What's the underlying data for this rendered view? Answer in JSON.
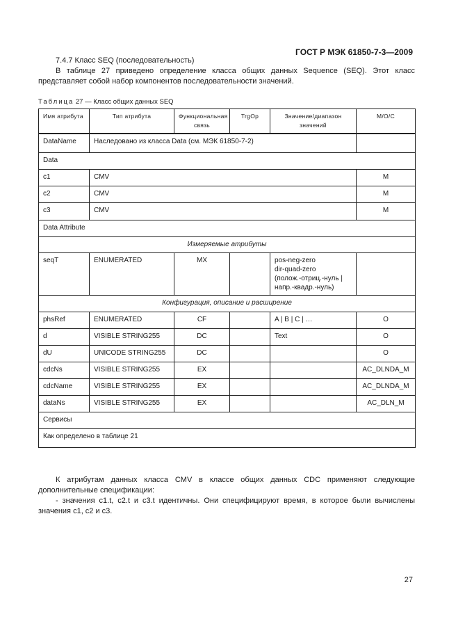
{
  "header": "ГОСТ Р МЭК 61850-7-3—2009",
  "section_title": "7.4.7 Класс SEQ (последовательность)",
  "intro": "В таблице 27 приведено определение класса общих данных Sequence (SEQ). Этот класс представляет собой набор компонентов последовательности значений.",
  "caption_prefix": "Таблица",
  "caption_rest": " 27 — Класс общих данных SEQ",
  "columns": [
    "Имя атрибута",
    "Тип атрибута",
    "Функциональная связь",
    "TrgOp",
    "Значение/диапазон значений",
    "M/O/C"
  ],
  "inherit_row": {
    "name": "DataName",
    "text": "Наследовано из класса Data (см. МЭК 61850-7-2)"
  },
  "section_data": "Data",
  "data_rows": [
    [
      "c1",
      "CMV",
      "M"
    ],
    [
      "c2",
      "CMV",
      "M"
    ],
    [
      "c3",
      "CMV",
      "M"
    ]
  ],
  "section_attr": "Data Attribute",
  "group_measured": "Измеряемые атрибуты",
  "seqT": {
    "name": "seqT",
    "type": "ENUMERATED",
    "fc": "MX",
    "trg": "",
    "values": [
      "pos-neg-zero",
      "dir-quad-zero",
      "(полож.-отриц.-нуль |",
      "напр.-квадр.-нуль)"
    ],
    "moc": ""
  },
  "group_config": "Конфигурация, описание и расширение",
  "config_rows": [
    [
      "phsRef",
      "ENUMERATED",
      "CF",
      "",
      "A | B | C | …",
      "O"
    ],
    [
      "d",
      "VISIBLE STRING255",
      "DC",
      "",
      "Text",
      "O"
    ],
    [
      "dU",
      "UNICODE STRING255",
      "DC",
      "",
      "",
      "O"
    ],
    [
      "cdcNs",
      "VISIBLE STRING255",
      "EX",
      "",
      "",
      "AC_DLNDA_M"
    ],
    [
      "cdcName",
      "VISIBLE STRING255",
      "EX",
      "",
      "",
      "AC_DLNDA_M"
    ],
    [
      "dataNs",
      "VISIBLE STRING255",
      "EX",
      "",
      "",
      "AC_DLN_M"
    ]
  ],
  "section_services": "Сервисы",
  "services_text": "Как определено в таблице 21",
  "after_para": "К атрибутам данных класса CMV в классе общих данных CDC применяют следующие дополнительные спецификации:",
  "after_item": "- значения c1.t, c2.t и c3.t идентичны. Они специфицируют время, в которое были вычислены значения c1, c2 и c3.",
  "page_number": "27"
}
